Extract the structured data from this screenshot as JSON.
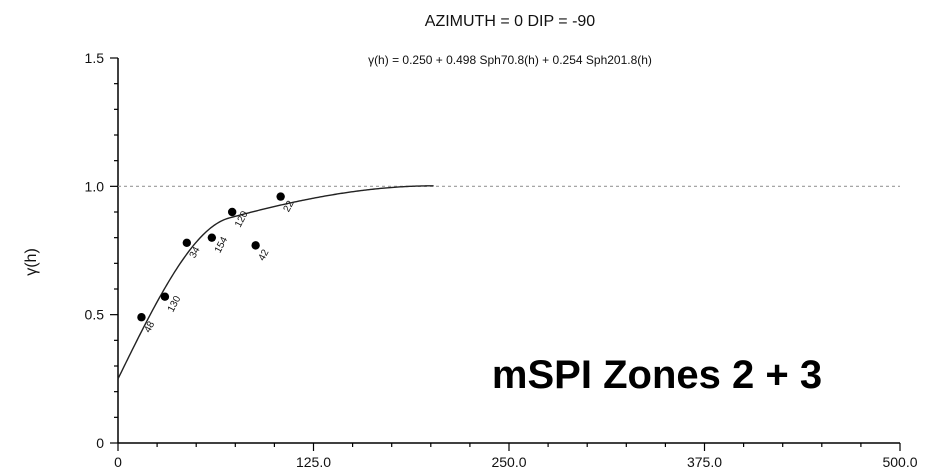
{
  "chart_data": {
    "type": "scatter",
    "title": "AZIMUTH = 0   DIP = -90",
    "subtitle": "γ(h) = 0.250 + 0.498 Sph70.8(h) + 0.254 Sph201.8(h)",
    "xlabel": "",
    "ylabel": "γ(h)",
    "xlim": [
      0,
      500
    ],
    "ylim": [
      0,
      1.5
    ],
    "x_ticks": [
      "0",
      "125.0",
      "250.0",
      "375.0",
      "500.0"
    ],
    "y_ticks": [
      "0",
      "0.5",
      "1.0",
      "1.5"
    ],
    "sill": 1.0,
    "model": {
      "nugget": 0.25,
      "structures": [
        {
          "type": "spherical",
          "sill": 0.498,
          "range": 70.8
        },
        {
          "type": "spherical",
          "sill": 0.254,
          "range": 201.8
        }
      ]
    },
    "points": [
      {
        "x": 15,
        "y": 0.49,
        "label": "48"
      },
      {
        "x": 30,
        "y": 0.57,
        "label": "130"
      },
      {
        "x": 44,
        "y": 0.78,
        "label": "34"
      },
      {
        "x": 60,
        "y": 0.8,
        "label": "154"
      },
      {
        "x": 73,
        "y": 0.9,
        "label": "120"
      },
      {
        "x": 88,
        "y": 0.77,
        "label": "42"
      },
      {
        "x": 104,
        "y": 0.96,
        "label": "22"
      }
    ],
    "annotation": "mSPI Zones 2 + 3",
    "grid": false,
    "legend": "none"
  }
}
